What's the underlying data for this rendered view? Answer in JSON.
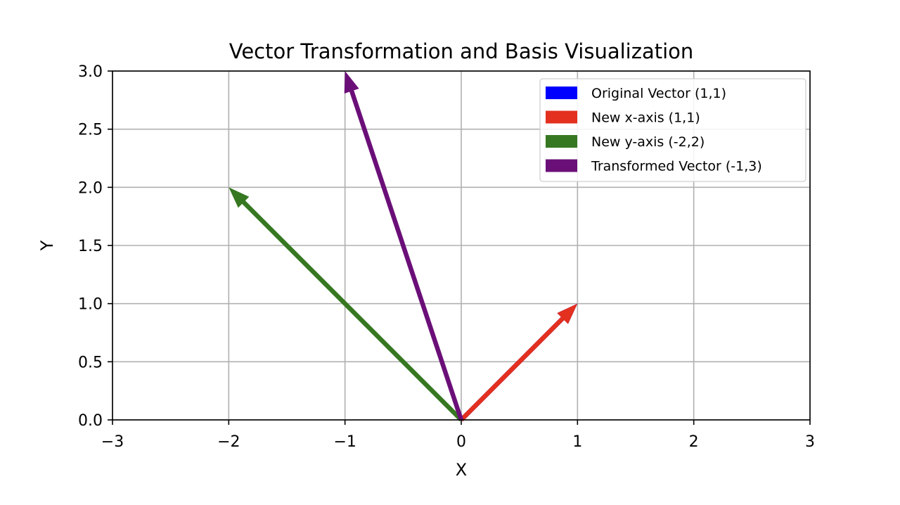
{
  "chart_data": {
    "type": "vector",
    "title": "Vector Transformation and Basis Visualization",
    "xlabel": "X",
    "ylabel": "Y",
    "xlim": [
      -3,
      3
    ],
    "ylim": [
      0,
      3
    ],
    "xticks": [
      -3,
      -2,
      -1,
      0,
      1,
      2,
      3
    ],
    "xtick_labels": [
      "−3",
      "−2",
      "−1",
      "0",
      "1",
      "2",
      "3"
    ],
    "yticks": [
      0,
      0.5,
      1,
      1.5,
      2,
      2.5,
      3
    ],
    "ytick_labels": [
      "0.0",
      "0.5",
      "1.0",
      "1.5",
      "2.0",
      "2.5",
      "3.0"
    ],
    "grid": true,
    "legend_position": "top-right",
    "series": [
      {
        "name": "Original Vector (1,1)",
        "color": "#0000ff",
        "origin": [
          0,
          0
        ],
        "vector": [
          1,
          1
        ]
      },
      {
        "name": "New x-axis (1,1)",
        "color": "#e3301f",
        "origin": [
          0,
          0
        ],
        "vector": [
          1,
          1
        ]
      },
      {
        "name": "New y-axis (-2,2)",
        "color": "#367821",
        "origin": [
          0,
          0
        ],
        "vector": [
          -2,
          2
        ]
      },
      {
        "name": "Transformed Vector (-1,3)",
        "color": "#6b0f78",
        "origin": [
          0,
          0
        ],
        "vector": [
          -1,
          3
        ]
      }
    ]
  }
}
